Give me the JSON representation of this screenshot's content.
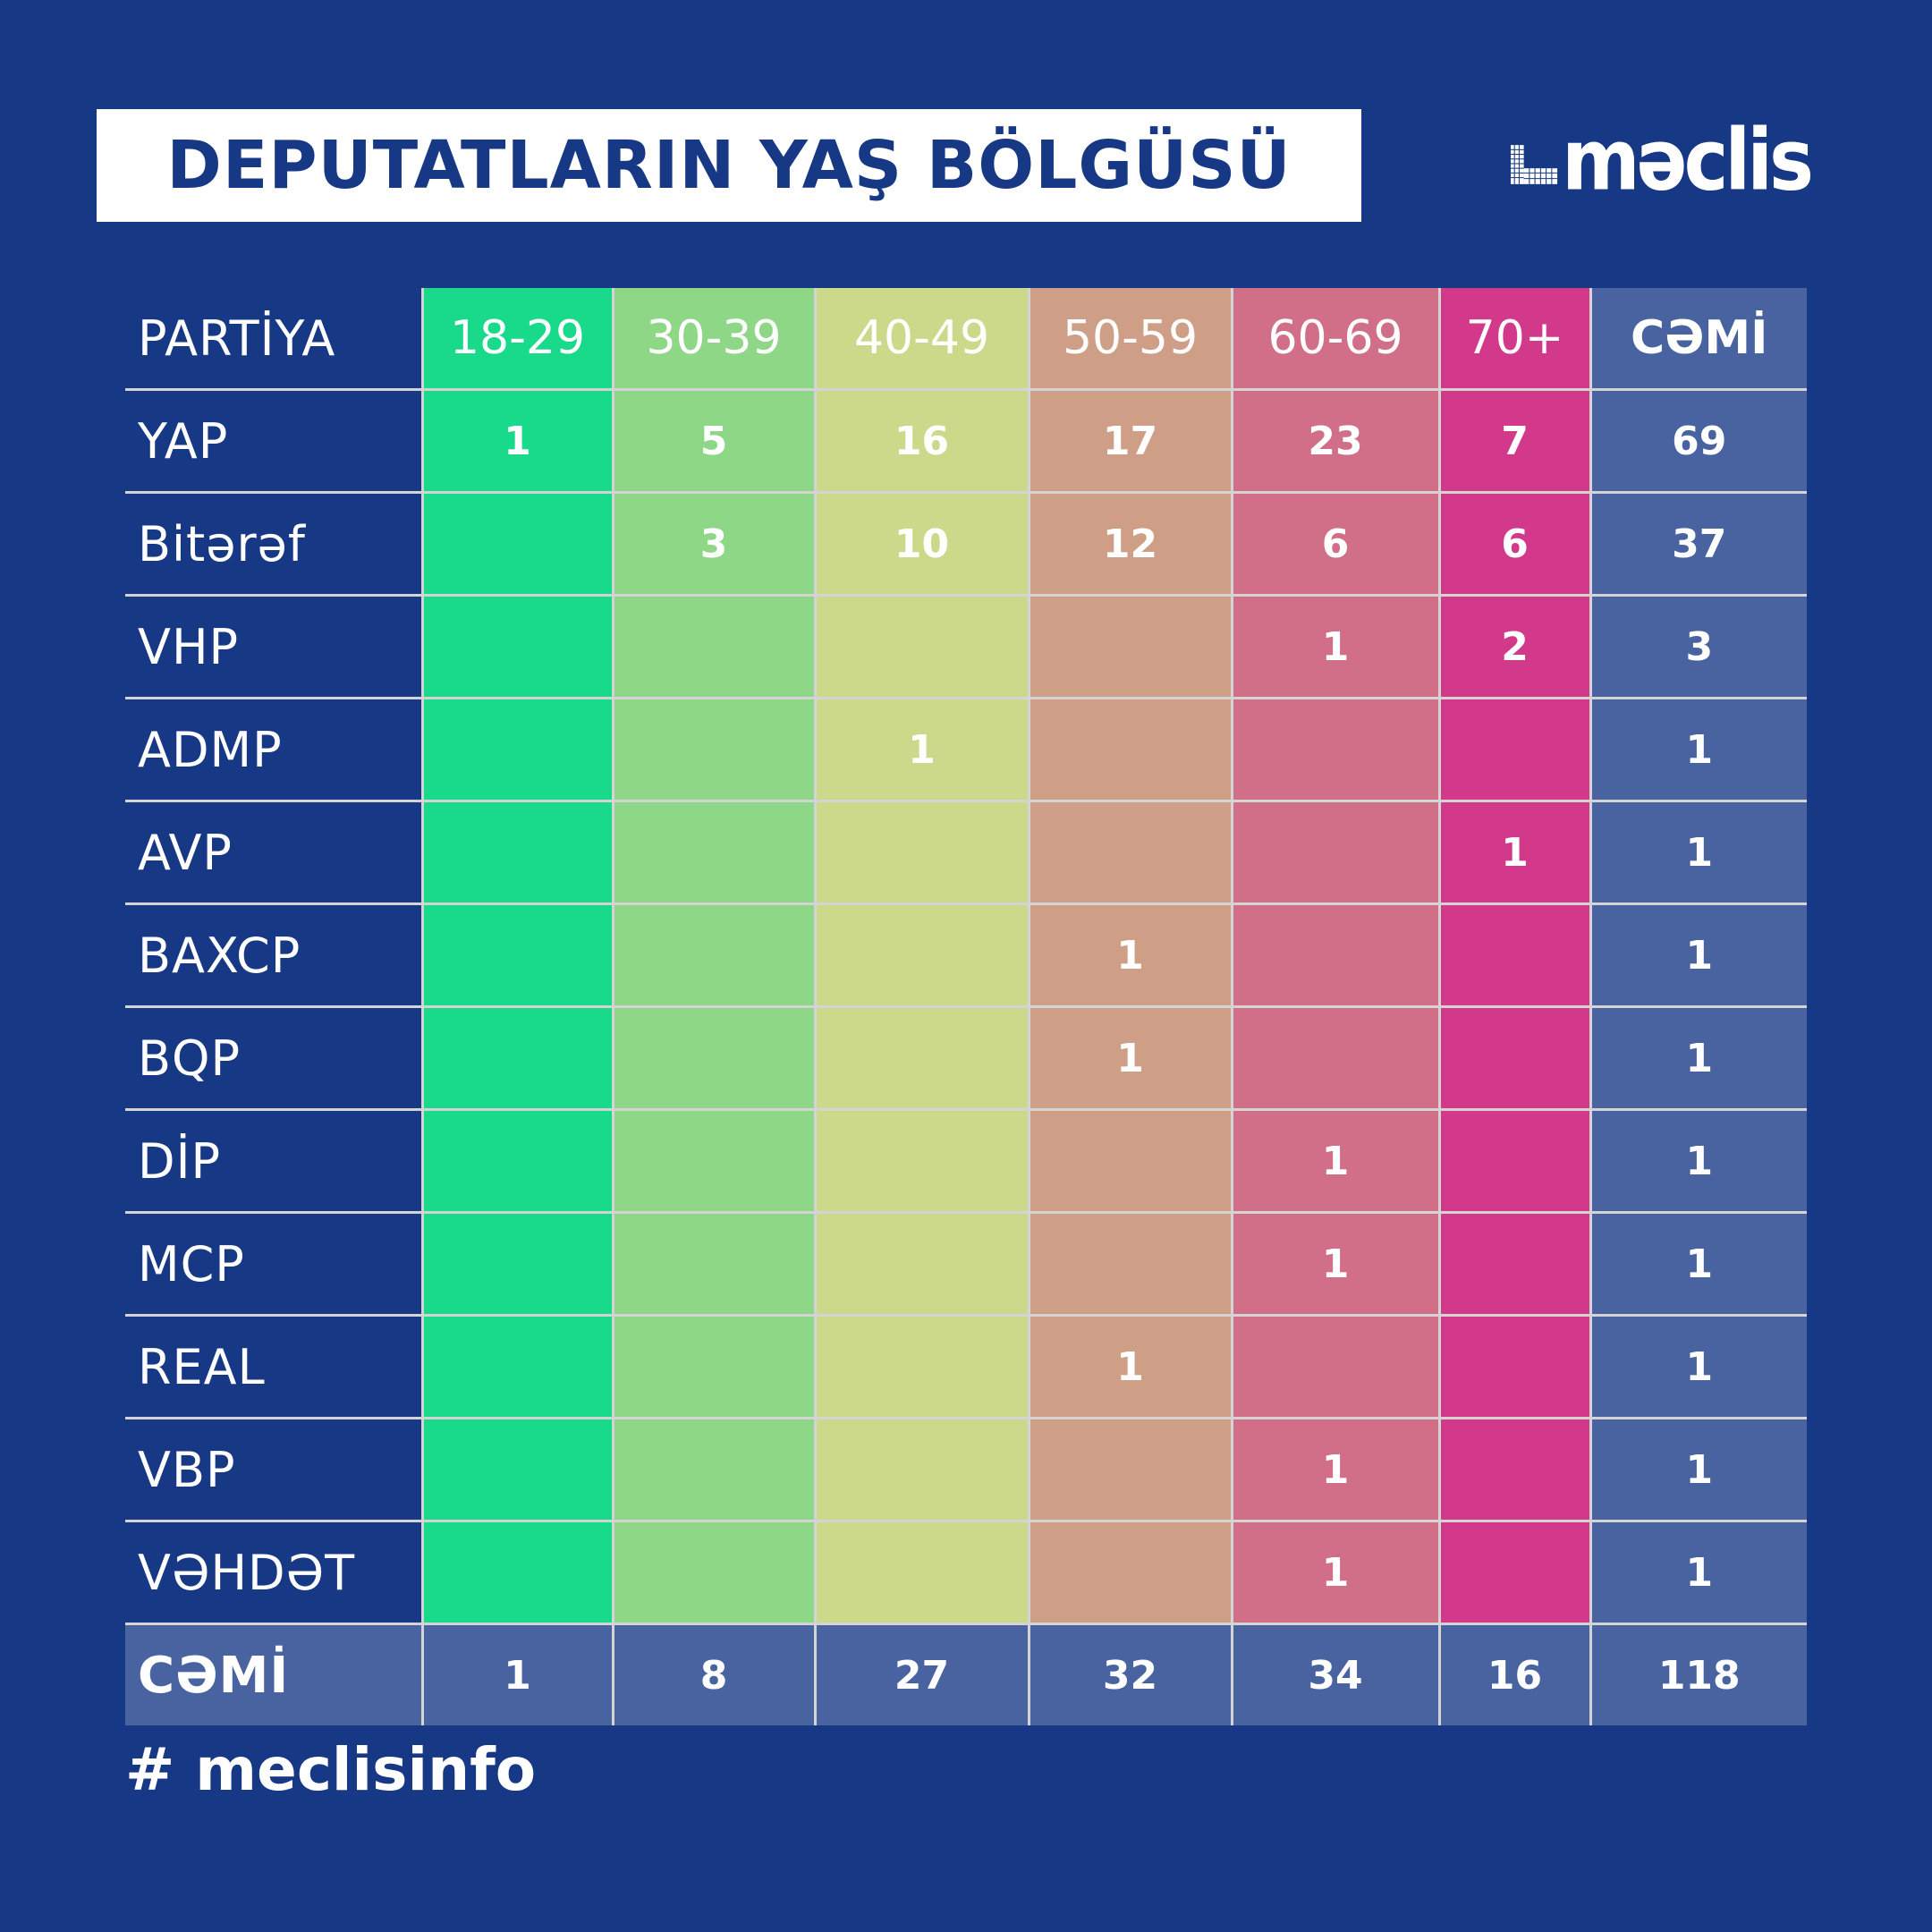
{
  "header": {
    "title": "DEPUTATLARIN YAŞ BÖLGÜSÜ",
    "logo_text": "məclis"
  },
  "footer": {
    "hashtag": "# meclisinfo"
  },
  "colors": {
    "background": "#173885",
    "band_colors": [
      "#19d98a",
      "#8ed786",
      "#ccd98a",
      "#cf9e86",
      "#d16f88",
      "#d3398b"
    ],
    "total_column": "#4863a0",
    "grid_line": "#d4d4d4"
  },
  "chart_data": {
    "type": "table",
    "title": "DEPUTATLARIN YAŞ BÖLGÜSÜ",
    "row_header_label": "PARTİYA",
    "total_label": "CƏMİ",
    "columns": [
      "18-29",
      "30-39",
      "40-49",
      "50-59",
      "60-69",
      "70+"
    ],
    "rows": [
      {
        "party": "YAP",
        "values": [
          "1",
          "5",
          "16",
          "17",
          "23",
          "7"
        ],
        "total": "69"
      },
      {
        "party": "Bitərəf",
        "values": [
          "",
          "3",
          "10",
          "12",
          "6",
          "6"
        ],
        "total": "37"
      },
      {
        "party": "VHP",
        "values": [
          "",
          "",
          "",
          "",
          "1",
          "2"
        ],
        "total": "3"
      },
      {
        "party": "ADMP",
        "values": [
          "",
          "",
          "1",
          "",
          "",
          ""
        ],
        "total": "1"
      },
      {
        "party": "AVP",
        "values": [
          "",
          "",
          "",
          "",
          "",
          "1"
        ],
        "total": "1"
      },
      {
        "party": "BAXCP",
        "values": [
          "",
          "",
          "",
          "1",
          "",
          ""
        ],
        "total": "1"
      },
      {
        "party": "BQP",
        "values": [
          "",
          "",
          "",
          "1",
          "",
          ""
        ],
        "total": "1"
      },
      {
        "party": "DİP",
        "values": [
          "",
          "",
          "",
          "",
          "1",
          ""
        ],
        "total": "1"
      },
      {
        "party": "MCP",
        "values": [
          "",
          "",
          "",
          "",
          "1",
          ""
        ],
        "total": "1"
      },
      {
        "party": "REAL",
        "values": [
          "",
          "",
          "",
          "1",
          "",
          ""
        ],
        "total": "1"
      },
      {
        "party": "VBP",
        "values": [
          "",
          "",
          "",
          "",
          "1",
          ""
        ],
        "total": "1"
      },
      {
        "party": "VƏHDƏT",
        "values": [
          "",
          "",
          "",
          "",
          "1",
          ""
        ],
        "total": "1"
      }
    ],
    "column_totals": [
      "1",
      "8",
      "27",
      "32",
      "34",
      "16"
    ],
    "grand_total": "118"
  }
}
